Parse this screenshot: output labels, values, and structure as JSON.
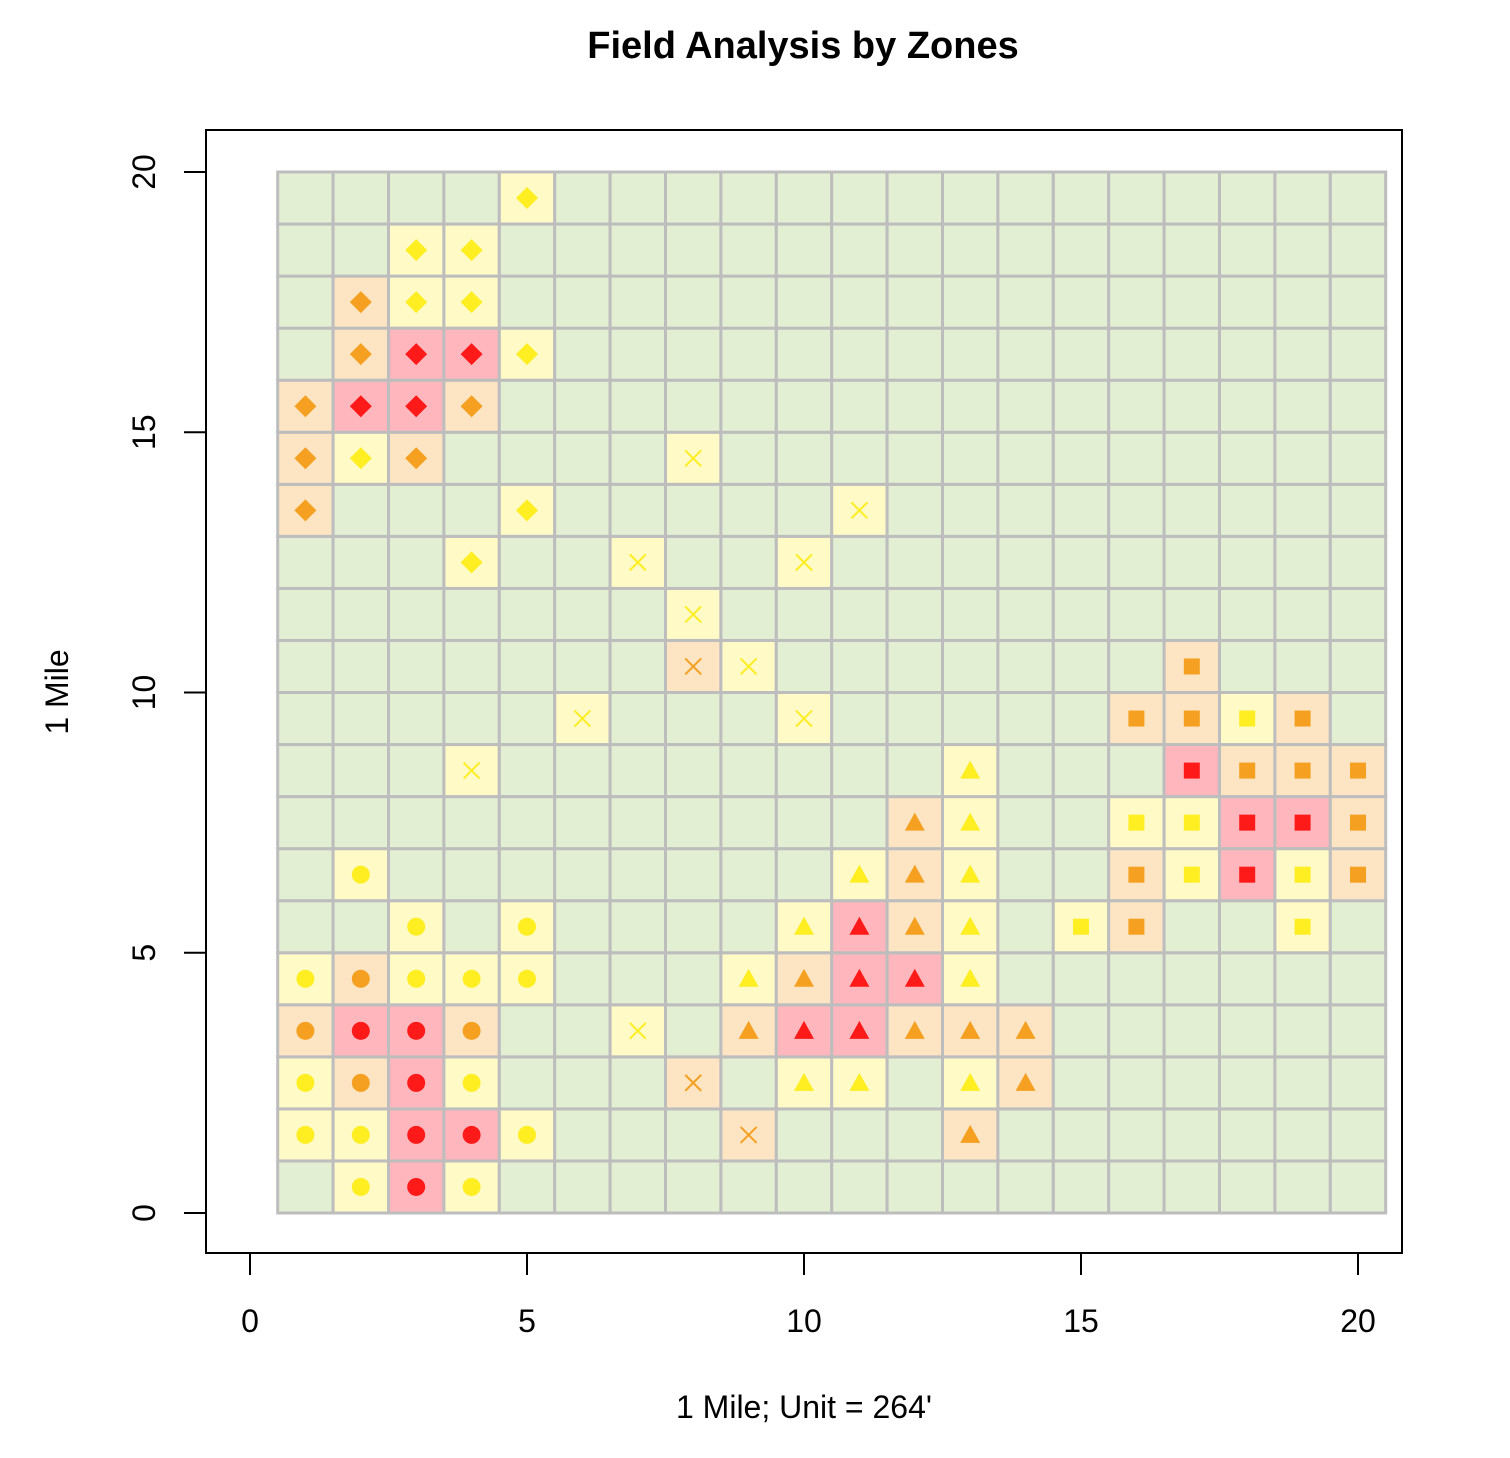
{
  "chart_data": {
    "type": "heatmap",
    "title": "Field Analysis by Zones",
    "xlabel": "1 Mile; Unit = 264'",
    "ylabel": "1 Mile",
    "xlim": [
      0,
      20
    ],
    "ylim": [
      0,
      20
    ],
    "x_ticks": [
      "0",
      "5",
      "10",
      "15",
      "20"
    ],
    "y_ticks": [
      "0",
      "5",
      "10",
      "15",
      "20"
    ],
    "grid": "20x20 cells, x 1-20, y 0-19 (cell rows 0..19 with marker at row center)",
    "colors": {
      "red": "#ff1a1a",
      "orange": "#f5a020",
      "yellow": "#ffee22",
      "cell_red": "#ffb7bd",
      "cell_orange": "#fde5c3",
      "cell_yellow": "#fffac6",
      "cell_background": "#e3efd3",
      "cell_border": "#bdbdbd"
    },
    "points": [
      {
        "x": 5,
        "y": 20,
        "shape": "diamond",
        "level": "yellow"
      },
      {
        "x": 3,
        "y": 19,
        "shape": "diamond",
        "level": "yellow"
      },
      {
        "x": 4,
        "y": 19,
        "shape": "diamond",
        "level": "yellow"
      },
      {
        "x": 2,
        "y": 18,
        "shape": "diamond",
        "level": "orange"
      },
      {
        "x": 3,
        "y": 18,
        "shape": "diamond",
        "level": "yellow"
      },
      {
        "x": 4,
        "y": 18,
        "shape": "diamond",
        "level": "yellow"
      },
      {
        "x": 2,
        "y": 17,
        "shape": "diamond",
        "level": "orange"
      },
      {
        "x": 3,
        "y": 17,
        "shape": "diamond",
        "level": "red"
      },
      {
        "x": 4,
        "y": 17,
        "shape": "diamond",
        "level": "red"
      },
      {
        "x": 5,
        "y": 17,
        "shape": "diamond",
        "level": "yellow"
      },
      {
        "x": 1,
        "y": 16,
        "shape": "diamond",
        "level": "orange"
      },
      {
        "x": 2,
        "y": 16,
        "shape": "diamond",
        "level": "red"
      },
      {
        "x": 3,
        "y": 16,
        "shape": "diamond",
        "level": "red"
      },
      {
        "x": 4,
        "y": 16,
        "shape": "diamond",
        "level": "orange"
      },
      {
        "x": 1,
        "y": 15,
        "shape": "diamond",
        "level": "orange"
      },
      {
        "x": 2,
        "y": 15,
        "shape": "diamond",
        "level": "yellow"
      },
      {
        "x": 3,
        "y": 15,
        "shape": "diamond",
        "level": "orange"
      },
      {
        "x": 1,
        "y": 14,
        "shape": "diamond",
        "level": "orange"
      },
      {
        "x": 5,
        "y": 14,
        "shape": "diamond",
        "level": "yellow"
      },
      {
        "x": 4,
        "y": 13,
        "shape": "diamond",
        "level": "yellow"
      },
      {
        "x": 8,
        "y": 15,
        "shape": "cross",
        "level": "yellow"
      },
      {
        "x": 11,
        "y": 14,
        "shape": "cross",
        "level": "yellow"
      },
      {
        "x": 7,
        "y": 13,
        "shape": "cross",
        "level": "yellow"
      },
      {
        "x": 10,
        "y": 13,
        "shape": "cross",
        "level": "yellow"
      },
      {
        "x": 8,
        "y": 12,
        "shape": "cross",
        "level": "yellow"
      },
      {
        "x": 8,
        "y": 11,
        "shape": "cross",
        "level": "orange"
      },
      {
        "x": 9,
        "y": 11,
        "shape": "cross",
        "level": "yellow"
      },
      {
        "x": 6,
        "y": 10,
        "shape": "cross",
        "level": "yellow"
      },
      {
        "x": 10,
        "y": 10,
        "shape": "cross",
        "level": "yellow"
      },
      {
        "x": 4,
        "y": 9,
        "shape": "cross",
        "level": "yellow"
      },
      {
        "x": 7,
        "y": 4,
        "shape": "cross",
        "level": "yellow"
      },
      {
        "x": 8,
        "y": 3,
        "shape": "cross",
        "level": "orange"
      },
      {
        "x": 9,
        "y": 2,
        "shape": "cross",
        "level": "orange"
      },
      {
        "x": 17,
        "y": 11,
        "shape": "square",
        "level": "orange"
      },
      {
        "x": 16,
        "y": 10,
        "shape": "square",
        "level": "orange"
      },
      {
        "x": 17,
        "y": 10,
        "shape": "square",
        "level": "orange"
      },
      {
        "x": 18,
        "y": 10,
        "shape": "square",
        "level": "yellow"
      },
      {
        "x": 19,
        "y": 10,
        "shape": "square",
        "level": "orange"
      },
      {
        "x": 17,
        "y": 9,
        "shape": "square",
        "level": "red"
      },
      {
        "x": 18,
        "y": 9,
        "shape": "square",
        "level": "orange"
      },
      {
        "x": 19,
        "y": 9,
        "shape": "square",
        "level": "orange"
      },
      {
        "x": 20,
        "y": 9,
        "shape": "square",
        "level": "orange"
      },
      {
        "x": 16,
        "y": 8,
        "shape": "square",
        "level": "yellow"
      },
      {
        "x": 17,
        "y": 8,
        "shape": "square",
        "level": "yellow"
      },
      {
        "x": 18,
        "y": 8,
        "shape": "square",
        "level": "red"
      },
      {
        "x": 19,
        "y": 8,
        "shape": "square",
        "level": "red"
      },
      {
        "x": 20,
        "y": 8,
        "shape": "square",
        "level": "orange"
      },
      {
        "x": 16,
        "y": 7,
        "shape": "square",
        "level": "orange"
      },
      {
        "x": 17,
        "y": 7,
        "shape": "square",
        "level": "yellow"
      },
      {
        "x": 18,
        "y": 7,
        "shape": "square",
        "level": "red"
      },
      {
        "x": 19,
        "y": 7,
        "shape": "square",
        "level": "yellow"
      },
      {
        "x": 20,
        "y": 7,
        "shape": "square",
        "level": "orange"
      },
      {
        "x": 15,
        "y": 6,
        "shape": "square",
        "level": "yellow"
      },
      {
        "x": 16,
        "y": 6,
        "shape": "square",
        "level": "orange"
      },
      {
        "x": 19,
        "y": 6,
        "shape": "square",
        "level": "yellow"
      },
      {
        "x": 13,
        "y": 9,
        "shape": "triangle",
        "level": "yellow"
      },
      {
        "x": 12,
        "y": 8,
        "shape": "triangle",
        "level": "orange"
      },
      {
        "x": 13,
        "y": 8,
        "shape": "triangle",
        "level": "yellow"
      },
      {
        "x": 11,
        "y": 7,
        "shape": "triangle",
        "level": "yellow"
      },
      {
        "x": 12,
        "y": 7,
        "shape": "triangle",
        "level": "orange"
      },
      {
        "x": 13,
        "y": 7,
        "shape": "triangle",
        "level": "yellow"
      },
      {
        "x": 10,
        "y": 6,
        "shape": "triangle",
        "level": "yellow"
      },
      {
        "x": 11,
        "y": 6,
        "shape": "triangle",
        "level": "red"
      },
      {
        "x": 12,
        "y": 6,
        "shape": "triangle",
        "level": "orange"
      },
      {
        "x": 13,
        "y": 6,
        "shape": "triangle",
        "level": "yellow"
      },
      {
        "x": 9,
        "y": 5,
        "shape": "triangle",
        "level": "yellow"
      },
      {
        "x": 10,
        "y": 5,
        "shape": "triangle",
        "level": "orange"
      },
      {
        "x": 11,
        "y": 5,
        "shape": "triangle",
        "level": "red"
      },
      {
        "x": 12,
        "y": 5,
        "shape": "triangle",
        "level": "red"
      },
      {
        "x": 13,
        "y": 5,
        "shape": "triangle",
        "level": "yellow"
      },
      {
        "x": 9,
        "y": 4,
        "shape": "triangle",
        "level": "orange"
      },
      {
        "x": 10,
        "y": 4,
        "shape": "triangle",
        "level": "red"
      },
      {
        "x": 11,
        "y": 4,
        "shape": "triangle",
        "level": "red"
      },
      {
        "x": 12,
        "y": 4,
        "shape": "triangle",
        "level": "orange"
      },
      {
        "x": 13,
        "y": 4,
        "shape": "triangle",
        "level": "orange"
      },
      {
        "x": 14,
        "y": 4,
        "shape": "triangle",
        "level": "orange"
      },
      {
        "x": 10,
        "y": 3,
        "shape": "triangle",
        "level": "yellow"
      },
      {
        "x": 11,
        "y": 3,
        "shape": "triangle",
        "level": "yellow"
      },
      {
        "x": 13,
        "y": 3,
        "shape": "triangle",
        "level": "yellow"
      },
      {
        "x": 14,
        "y": 3,
        "shape": "triangle",
        "level": "orange"
      },
      {
        "x": 13,
        "y": 2,
        "shape": "triangle",
        "level": "orange"
      },
      {
        "x": 2,
        "y": 7,
        "shape": "circle",
        "level": "yellow"
      },
      {
        "x": 3,
        "y": 6,
        "shape": "circle",
        "level": "yellow"
      },
      {
        "x": 5,
        "y": 6,
        "shape": "circle",
        "level": "yellow"
      },
      {
        "x": 1,
        "y": 5,
        "shape": "circle",
        "level": "yellow"
      },
      {
        "x": 2,
        "y": 5,
        "shape": "circle",
        "level": "orange"
      },
      {
        "x": 3,
        "y": 5,
        "shape": "circle",
        "level": "yellow"
      },
      {
        "x": 4,
        "y": 5,
        "shape": "circle",
        "level": "yellow"
      },
      {
        "x": 5,
        "y": 5,
        "shape": "circle",
        "level": "yellow"
      },
      {
        "x": 1,
        "y": 4,
        "shape": "circle",
        "level": "orange"
      },
      {
        "x": 2,
        "y": 4,
        "shape": "circle",
        "level": "red"
      },
      {
        "x": 3,
        "y": 4,
        "shape": "circle",
        "level": "red"
      },
      {
        "x": 4,
        "y": 4,
        "shape": "circle",
        "level": "orange"
      },
      {
        "x": 1,
        "y": 3,
        "shape": "circle",
        "level": "yellow"
      },
      {
        "x": 2,
        "y": 3,
        "shape": "circle",
        "level": "orange"
      },
      {
        "x": 3,
        "y": 3,
        "shape": "circle",
        "level": "red"
      },
      {
        "x": 4,
        "y": 3,
        "shape": "circle",
        "level": "yellow"
      },
      {
        "x": 1,
        "y": 2,
        "shape": "circle",
        "level": "yellow"
      },
      {
        "x": 2,
        "y": 2,
        "shape": "circle",
        "level": "yellow"
      },
      {
        "x": 3,
        "y": 2,
        "shape": "circle",
        "level": "red"
      },
      {
        "x": 4,
        "y": 2,
        "shape": "circle",
        "level": "red"
      },
      {
        "x": 5,
        "y": 2,
        "shape": "circle",
        "level": "yellow"
      },
      {
        "x": 2,
        "y": 1,
        "shape": "circle",
        "level": "yellow"
      },
      {
        "x": 3,
        "y": 1,
        "shape": "circle",
        "level": "red"
      },
      {
        "x": 4,
        "y": 1,
        "shape": "circle",
        "level": "yellow"
      }
    ],
    "highlight_cells": [
      {
        "x": 2,
        "y": 0,
        "level": "yellow"
      },
      {
        "x": 3,
        "y": 0,
        "level": "red"
      },
      {
        "x": 4,
        "y": 0,
        "level": "yellow"
      },
      {
        "x": 1,
        "y": 1,
        "level": "yellow"
      },
      {
        "x": 5,
        "y": 1,
        "level": "yellow"
      }
    ]
  }
}
